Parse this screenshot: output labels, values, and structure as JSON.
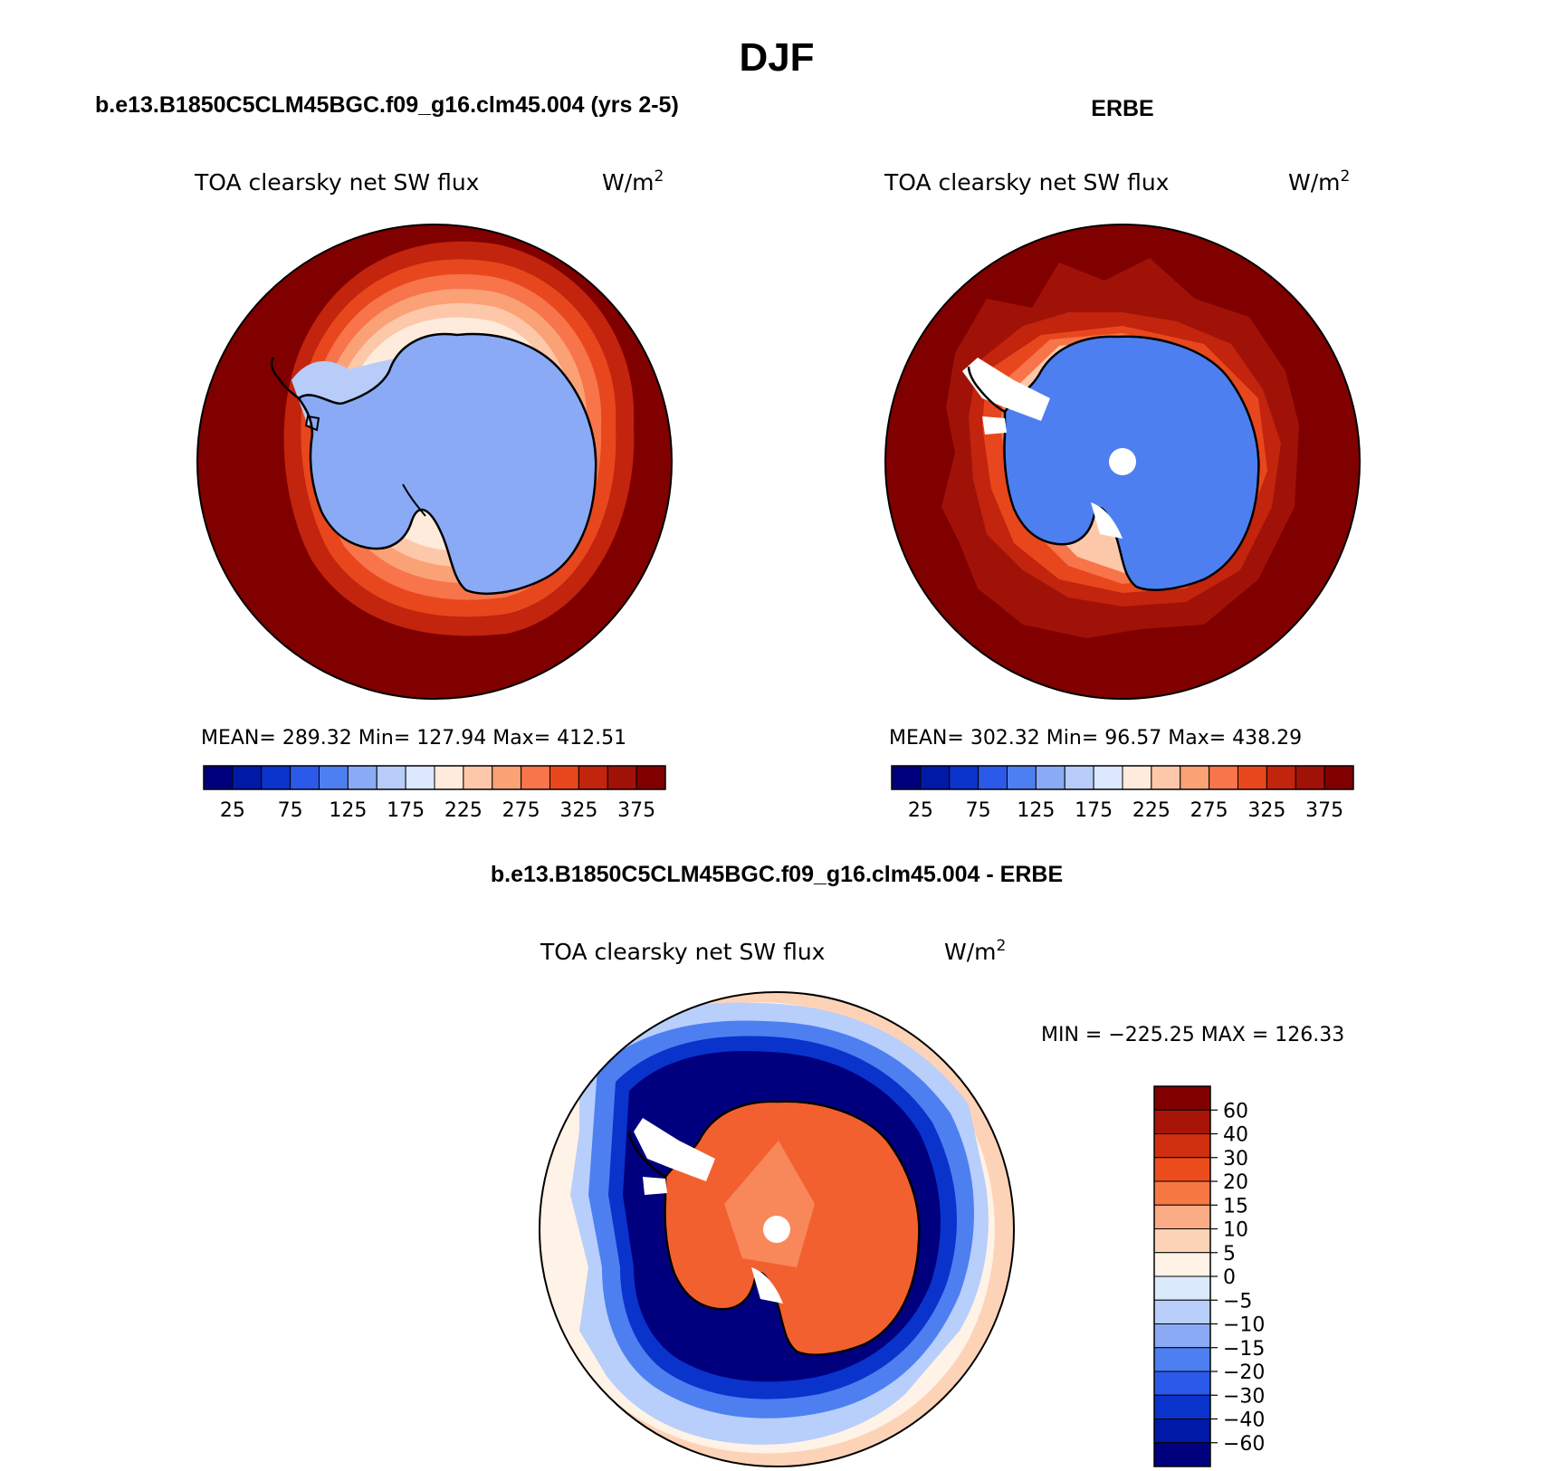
{
  "figure_title": "DJF",
  "panels": [
    {
      "id": "model",
      "title": "b.e13.B1850C5CLM45BGC.f09_g16.clm45.004 (yrs 2-5)",
      "variable": "TOA clearsky net SW flux",
      "units_base": "W/m",
      "units_exp": "2",
      "stats": "MEAN= 289.32   Min= 127.94   Max= 412.51",
      "colorbar": {
        "levels": [
          "25",
          "75",
          "125",
          "175",
          "225",
          "275",
          "325",
          "375"
        ],
        "colors": [
          "#00007f",
          "#0019a6",
          "#0a33cc",
          "#2b59ea",
          "#4d7ff0",
          "#8aaaf6",
          "#b8ccfa",
          "#dbe8fd",
          "#feebdb",
          "#fdc8aa",
          "#fba176",
          "#f8744a",
          "#e8471d",
          "#c2240d",
          "#a01208",
          "#800000"
        ]
      }
    },
    {
      "id": "obs",
      "title": "ERBE",
      "variable": "TOA clearsky net SW flux",
      "units_base": "W/m",
      "units_exp": "2",
      "stats": "MEAN= 302.32   Min=  96.57   Max= 438.29",
      "colorbar": {
        "levels": [
          "25",
          "75",
          "125",
          "175",
          "225",
          "275",
          "325",
          "375"
        ],
        "colors": [
          "#00007f",
          "#0019a6",
          "#0a33cc",
          "#2b59ea",
          "#4d7ff0",
          "#8aaaf6",
          "#b8ccfa",
          "#dbe8fd",
          "#feebdb",
          "#fdc8aa",
          "#fba176",
          "#f8744a",
          "#e8471d",
          "#c2240d",
          "#a01208",
          "#800000"
        ]
      }
    },
    {
      "id": "diff",
      "title": "b.e13.B1850C5CLM45BGC.f09_g16.clm45.004 - ERBE",
      "variable": "TOA clearsky net SW flux",
      "units_base": "W/m",
      "units_exp": "2",
      "stats": "MIN = −225.25 MAX = 126.33",
      "colorbar": {
        "levels": [
          "60",
          "40",
          "30",
          "20",
          "15",
          "10",
          "5",
          "0",
          "−5",
          "−10",
          "−15",
          "−20",
          "−30",
          "−40",
          "−60"
        ],
        "colors": [
          "#800000",
          "#a81508",
          "#d0300f",
          "#ec4d1c",
          "#f87844",
          "#fbab85",
          "#fdd3b8",
          "#fff2e6",
          "#dbe9fd",
          "#b8cefb",
          "#8aaaf6",
          "#4d7ff0",
          "#2b59ea",
          "#0a33cc",
          "#0019a6",
          "#00007f"
        ]
      }
    }
  ],
  "colors": {
    "antarctica_model": "#8aaaf6",
    "antarctica_obs": "#4d7ff0",
    "ocean_high": "#800000",
    "diff_land": "#f26030",
    "diff_ocean_low": "#00007f",
    "diff_outer": "#fdd3b8"
  }
}
